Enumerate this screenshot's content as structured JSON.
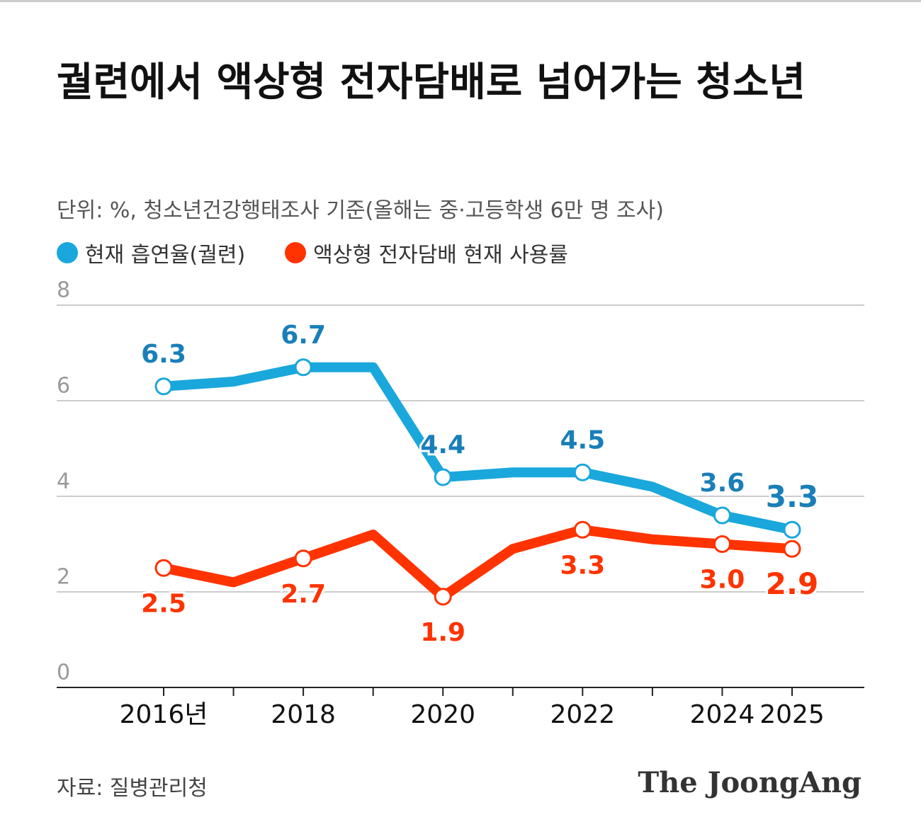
{
  "chart_data": {
    "type": "line",
    "title": "궐련에서 액상형 전자담배로 넘어가는 청소년",
    "subtitle": "단위: %, 청소년건강행태조사 기준(올해는 중·고등학생 6만 명 조사)",
    "source": "자료: 질병관리청",
    "brand": "The JoongAng",
    "categories": [
      "2016년",
      null,
      "2018",
      null,
      "2020",
      null,
      "2022",
      null,
      "2024",
      "2025"
    ],
    "series": [
      {
        "name": "현재 흡연율(궐련)",
        "color": "#1aa7dc",
        "label_color": "#1a7fb8",
        "values": [
          6.3,
          6.4,
          6.7,
          6.7,
          4.4,
          4.5,
          4.5,
          4.2,
          3.6,
          3.3
        ],
        "value_labels": [
          "6.3",
          null,
          "6.7",
          null,
          "4.4",
          null,
          "4.5",
          null,
          "3.6",
          "3.3"
        ]
      },
      {
        "name": "액상형 전자담배 현재 사용률",
        "color": "#ff3300",
        "label_color": "#ff3300",
        "values": [
          2.5,
          2.2,
          2.7,
          3.2,
          1.9,
          2.9,
          3.3,
          3.1,
          3.0,
          2.9
        ],
        "value_labels": [
          "2.5",
          null,
          "2.7",
          null,
          "1.9",
          null,
          "3.3",
          null,
          "3.0",
          "2.9"
        ]
      }
    ],
    "ylim": [
      0,
      8
    ],
    "yticks": [
      0,
      2,
      4,
      6,
      8
    ],
    "grid": true
  }
}
